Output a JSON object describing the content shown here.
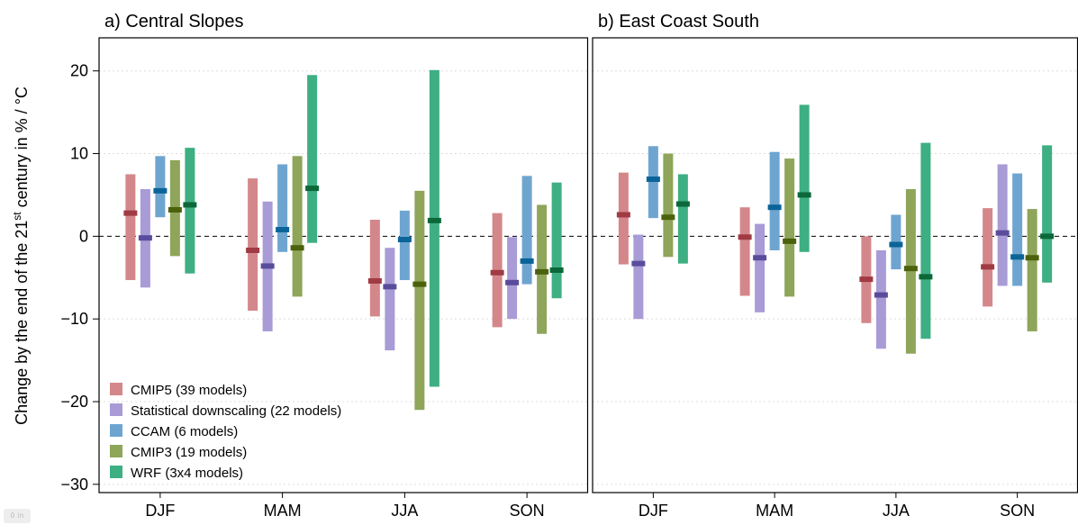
{
  "chart_data": [
    {
      "type": "range-bar",
      "title": "a) Central Slopes",
      "ylabel": "Change by the end of the 21st century in % / °C",
      "ylim": [
        -31,
        24
      ],
      "yticks": [
        20,
        10,
        0,
        -10,
        -20,
        -30
      ],
      "ytick_labels": [
        "20",
        "10",
        "0",
        "−10",
        "−20",
        "−30"
      ],
      "grid": true,
      "zero_line": "dashed",
      "categories": [
        "DJF",
        "MAM",
        "JJA",
        "SON"
      ],
      "legend_position": "bottom-left",
      "series": [
        {
          "name": "CMIP5 (39 models)",
          "color": "#d4878a",
          "median_color": "#a03a43",
          "low": [
            -5.3,
            -9.0,
            -9.7,
            -11.0
          ],
          "high": [
            7.5,
            7.0,
            2.0,
            2.8
          ],
          "median": [
            2.8,
            -1.7,
            -5.4,
            -4.4
          ]
        },
        {
          "name": "Statistical downscaling (22 models)",
          "color": "#a99bd5",
          "median_color": "#5a4c9c",
          "low": [
            -6.2,
            -11.5,
            -13.8,
            -10.0
          ],
          "high": [
            5.7,
            4.2,
            -1.4,
            -0.1
          ],
          "median": [
            -0.2,
            -3.6,
            -6.1,
            -5.6
          ]
        },
        {
          "name": "CCAM (6 models)",
          "color": "#6ea5d0",
          "median_color": "#0b6498",
          "low": [
            2.3,
            -1.9,
            -5.3,
            -5.8
          ],
          "high": [
            9.7,
            8.7,
            3.1,
            7.3
          ],
          "median": [
            5.5,
            0.8,
            -0.4,
            -3.0
          ]
        },
        {
          "name": "CMIP3 (19 models)",
          "color": "#8ea55a",
          "median_color": "#4c610c",
          "low": [
            -2.4,
            -7.3,
            -21.0,
            -11.8
          ],
          "high": [
            9.2,
            9.7,
            5.5,
            3.8
          ],
          "median": [
            3.2,
            -1.4,
            -5.8,
            -4.3
          ]
        },
        {
          "name": "WRF (3x4 models)",
          "color": "#3eaf83",
          "median_color": "#0c6838",
          "low": [
            -4.5,
            -0.8,
            -18.2,
            -7.5
          ],
          "high": [
            10.7,
            19.5,
            20.1,
            6.5
          ],
          "median": [
            3.8,
            5.8,
            1.9,
            -4.1
          ]
        }
      ]
    },
    {
      "type": "range-bar",
      "title": "b) East Coast South",
      "ylim": [
        -31,
        24
      ],
      "grid": true,
      "zero_line": "dashed",
      "categories": [
        "DJF",
        "MAM",
        "JJA",
        "SON"
      ],
      "series": [
        {
          "name": "CMIP5 (39 models)",
          "color": "#d4878a",
          "median_color": "#a03a43",
          "low": [
            -3.4,
            -7.2,
            -10.5,
            -8.5
          ],
          "high": [
            7.7,
            3.5,
            0.0,
            3.4
          ],
          "median": [
            2.6,
            -0.1,
            -5.2,
            -3.7
          ]
        },
        {
          "name": "Statistical downscaling (22 models)",
          "color": "#a99bd5",
          "median_color": "#5a4c9c",
          "low": [
            -10.0,
            -9.2,
            -13.6,
            -6.0
          ],
          "high": [
            0.2,
            1.5,
            -1.7,
            8.7
          ],
          "median": [
            -3.3,
            -2.6,
            -7.1,
            0.4
          ]
        },
        {
          "name": "CCAM (6 models)",
          "color": "#6ea5d0",
          "median_color": "#0b6498",
          "low": [
            2.2,
            -1.7,
            -4.0,
            -6.0
          ],
          "high": [
            10.9,
            10.2,
            2.6,
            7.6
          ],
          "median": [
            6.9,
            3.5,
            -1.0,
            -2.5
          ]
        },
        {
          "name": "CMIP3 (19 models)",
          "color": "#8ea55a",
          "median_color": "#4c610c",
          "low": [
            -2.5,
            -7.3,
            -14.2,
            -11.5
          ],
          "high": [
            10.0,
            9.4,
            5.7,
            3.3
          ],
          "median": [
            2.3,
            -0.6,
            -3.9,
            -2.6
          ]
        },
        {
          "name": "WRF (3x4 models)",
          "color": "#3eaf83",
          "median_color": "#0c6838",
          "low": [
            -3.3,
            -1.9,
            -12.4,
            -5.6
          ],
          "high": [
            7.5,
            15.9,
            11.3,
            11.0
          ],
          "median": [
            3.9,
            5.0,
            -4.9,
            0.0
          ]
        }
      ]
    }
  ]
}
